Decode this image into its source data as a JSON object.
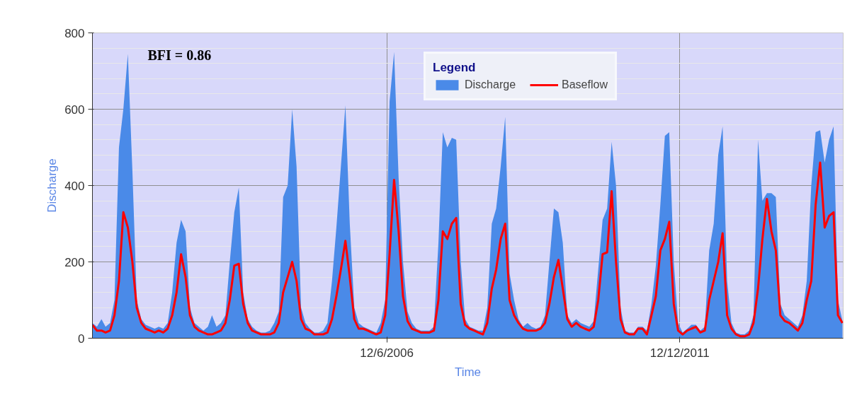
{
  "chart_data": {
    "type": "area",
    "xlabel": "Time",
    "ylabel": "Discharge",
    "legend_title": "Legend",
    "annotations": [
      "BFI = 0.86"
    ],
    "xlim": [
      "2000-12-01",
      "2015-01-06"
    ],
    "xticks": [
      {
        "value": "2006-06-12",
        "label": "12/6/2006"
      },
      {
        "value": "2011-12-12",
        "label": "12/12/2011"
      }
    ],
    "ylim": [
      0,
      800
    ],
    "yticks": [
      0,
      200,
      400,
      600,
      800
    ],
    "grid": true,
    "legend": "top",
    "x": [
      "2000-12",
      "2001-01",
      "2001-02",
      "2001-03",
      "2001-04",
      "2001-05",
      "2001-06",
      "2001-07",
      "2001-08",
      "2001-09",
      "2001-10",
      "2001-11",
      "2001-12",
      "2002-01",
      "2002-02",
      "2002-03",
      "2002-04",
      "2002-05",
      "2002-06",
      "2002-07",
      "2002-08",
      "2002-09",
      "2002-10",
      "2002-11",
      "2002-12",
      "2003-01",
      "2003-02",
      "2003-03",
      "2003-04",
      "2003-05",
      "2003-06",
      "2003-07",
      "2003-08",
      "2003-09",
      "2003-10",
      "2003-11",
      "2003-12",
      "2004-01",
      "2004-02",
      "2004-03",
      "2004-04",
      "2004-05",
      "2004-06",
      "2004-07",
      "2004-08",
      "2004-09",
      "2004-10",
      "2004-11",
      "2004-12",
      "2005-01",
      "2005-02",
      "2005-03",
      "2005-04",
      "2005-05",
      "2005-06",
      "2005-07",
      "2005-08",
      "2005-09",
      "2005-10",
      "2005-11",
      "2005-12",
      "2006-01",
      "2006-02",
      "2006-03",
      "2006-04",
      "2006-05",
      "2006-06",
      "2006-07",
      "2006-08",
      "2006-09",
      "2006-10",
      "2006-11",
      "2006-12",
      "2007-01",
      "2007-02",
      "2007-03",
      "2007-04",
      "2007-05",
      "2007-06",
      "2007-07",
      "2007-08",
      "2007-09",
      "2007-10",
      "2007-11",
      "2007-12",
      "2008-01",
      "2008-02",
      "2008-03",
      "2008-04",
      "2008-05",
      "2008-06",
      "2008-07",
      "2008-08",
      "2008-09",
      "2008-10",
      "2008-11",
      "2008-12",
      "2009-01",
      "2009-02",
      "2009-03",
      "2009-04",
      "2009-05",
      "2009-06",
      "2009-07",
      "2009-08",
      "2009-09",
      "2009-10",
      "2009-11",
      "2009-12",
      "2010-01",
      "2010-02",
      "2010-03",
      "2010-04",
      "2010-05",
      "2010-06",
      "2010-07",
      "2010-08",
      "2010-09",
      "2010-10",
      "2010-11",
      "2010-12",
      "2011-01",
      "2011-02",
      "2011-03",
      "2011-04",
      "2011-05",
      "2011-06",
      "2011-07",
      "2011-08",
      "2011-09",
      "2011-10",
      "2011-11",
      "2011-12",
      "2012-01",
      "2012-02",
      "2012-03",
      "2012-04",
      "2012-05",
      "2012-06",
      "2012-07",
      "2012-08",
      "2012-09",
      "2012-10",
      "2012-11",
      "2012-12",
      "2013-01",
      "2013-02",
      "2013-03",
      "2013-04",
      "2013-05",
      "2013-06",
      "2013-07",
      "2013-08",
      "2013-09",
      "2013-10",
      "2013-11",
      "2013-12",
      "2014-01",
      "2014-02",
      "2014-03",
      "2014-04",
      "2014-05",
      "2014-06",
      "2014-07",
      "2014-08",
      "2014-09",
      "2014-10",
      "2014-11",
      "2014-12",
      "2015-01"
    ],
    "series": [
      {
        "name": "Discharge",
        "color": "#4a8ae8",
        "values": [
          40,
          30,
          50,
          30,
          40,
          100,
          500,
          600,
          745,
          440,
          100,
          50,
          35,
          30,
          25,
          30,
          25,
          40,
          120,
          250,
          310,
          280,
          80,
          40,
          30,
          20,
          30,
          60,
          30,
          40,
          60,
          200,
          330,
          395,
          120,
          50,
          30,
          20,
          15,
          15,
          20,
          40,
          70,
          370,
          400,
          600,
          450,
          80,
          40,
          25,
          15,
          15,
          20,
          40,
          150,
          290,
          450,
          610,
          300,
          80,
          40,
          30,
          25,
          20,
          15,
          40,
          100,
          620,
          750,
          420,
          200,
          70,
          40,
          25,
          20,
          20,
          20,
          30,
          250,
          540,
          500,
          525,
          520,
          200,
          50,
          30,
          25,
          20,
          20,
          80,
          300,
          340,
          450,
          580,
          170,
          100,
          50,
          30,
          40,
          30,
          25,
          30,
          60,
          200,
          340,
          330,
          250,
          60,
          40,
          50,
          40,
          35,
          30,
          45,
          180,
          310,
          340,
          515,
          400,
          80,
          20,
          15,
          15,
          30,
          30,
          20,
          90,
          190,
          350,
          530,
          540,
          200,
          40,
          15,
          25,
          35,
          35,
          20,
          30,
          230,
          300,
          480,
          555,
          150,
          40,
          15,
          10,
          10,
          20,
          60,
          520,
          360,
          380,
          380,
          370,
          90,
          60,
          50,
          40,
          30,
          60,
          150,
          400,
          540,
          545,
          460,
          520,
          555,
          100,
          45
        ]
      },
      {
        "name": "Baseflow",
        "type": "line",
        "color": "#ff0000",
        "values": [
          35,
          20,
          20,
          15,
          20,
          60,
          150,
          330,
          290,
          200,
          80,
          40,
          25,
          20,
          15,
          20,
          15,
          25,
          60,
          120,
          220,
          160,
          60,
          30,
          20,
          15,
          10,
          10,
          15,
          20,
          40,
          100,
          190,
          195,
          90,
          40,
          20,
          15,
          10,
          10,
          10,
          15,
          40,
          120,
          160,
          200,
          150,
          50,
          25,
          20,
          10,
          10,
          10,
          15,
          50,
          110,
          180,
          255,
          160,
          50,
          25,
          25,
          20,
          15,
          10,
          15,
          60,
          220,
          415,
          280,
          110,
          45,
          25,
          20,
          15,
          15,
          15,
          20,
          100,
          280,
          260,
          300,
          315,
          90,
          35,
          25,
          20,
          15,
          10,
          40,
          130,
          180,
          260,
          300,
          100,
          60,
          40,
          25,
          20,
          20,
          20,
          25,
          40,
          90,
          160,
          205,
          130,
          50,
          30,
          40,
          30,
          25,
          20,
          30,
          100,
          220,
          225,
          385,
          200,
          50,
          15,
          10,
          10,
          25,
          25,
          10,
          60,
          110,
          230,
          260,
          305,
          90,
          20,
          10,
          20,
          25,
          30,
          15,
          20,
          100,
          150,
          200,
          275,
          60,
          25,
          10,
          5,
          5,
          10,
          40,
          130,
          260,
          365,
          280,
          230,
          60,
          45,
          40,
          30,
          20,
          40,
          100,
          150,
          350,
          460,
          290,
          320,
          330,
          60,
          40
        ]
      }
    ]
  }
}
